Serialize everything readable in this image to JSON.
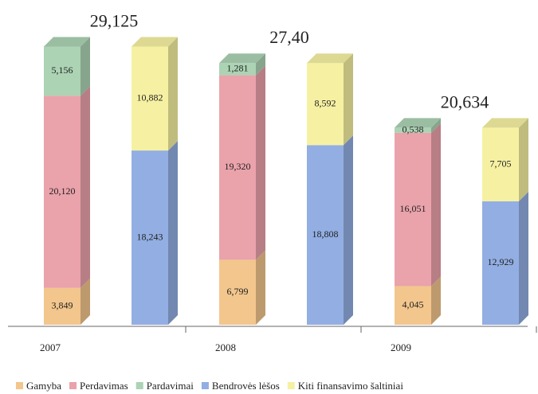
{
  "chart_data": {
    "type": "bar",
    "categories": [
      "2007",
      "2008",
      "2009"
    ],
    "total_labels": [
      "29,125",
      "27,40",
      "20,634"
    ],
    "ylim": [
      0,
      34
    ],
    "series": [
      {
        "name": "Gamyba",
        "color": "#f2c68c",
        "stack": 0,
        "values": [
          3.849,
          6.799,
          4.045
        ],
        "value_labels": [
          "3,849",
          "6,799",
          "4,045"
        ]
      },
      {
        "name": "Perdavimas",
        "color": "#eaa2ab",
        "stack": 0,
        "values": [
          20.12,
          19.32,
          16.051
        ],
        "value_labels": [
          "20,120",
          "19,320",
          "16,051"
        ]
      },
      {
        "name": "Pardavimai",
        "color": "#acd3b4",
        "stack": 0,
        "values": [
          5.156,
          1.281,
          0.538
        ],
        "value_labels": [
          "5,156",
          "1,281",
          "0,538"
        ]
      },
      {
        "name": "Bendrovės lėšos",
        "color": "#92aee2",
        "stack": 1,
        "values": [
          18.243,
          18.808,
          12.929
        ],
        "value_labels": [
          "18,243",
          "18,808",
          "12,929"
        ]
      },
      {
        "name": "Kiti finansavimo šaltiniai",
        "color": "#f6f1a2",
        "stack": 1,
        "values": [
          10.882,
          8.592,
          7.705
        ],
        "value_labels": [
          "10,882",
          "8,592",
          "7,705"
        ]
      }
    ]
  }
}
